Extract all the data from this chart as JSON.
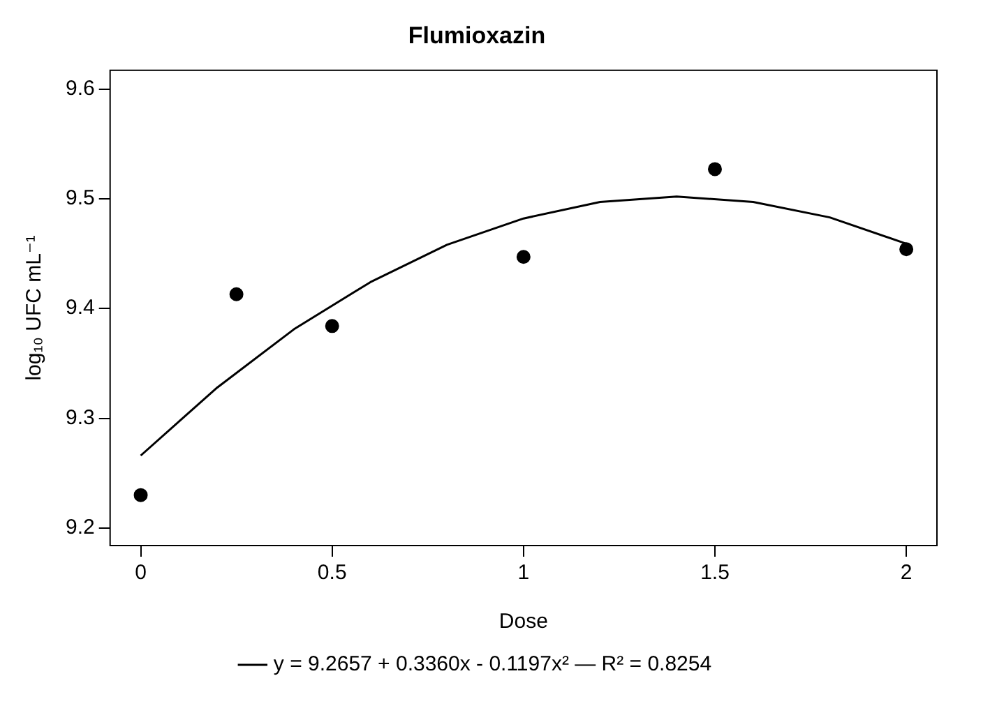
{
  "chart_data": {
    "type": "scatter",
    "title": "Flumioxazin",
    "xlabel": "Dose",
    "ylabel": "log₁₀ UFC mL⁻¹",
    "xlim": [
      -0.08,
      2.08
    ],
    "ylim": [
      9.184,
      9.617
    ],
    "xticks": [
      0,
      0.5,
      1,
      1.5,
      2
    ],
    "yticks": [
      9.2,
      9.3,
      9.4,
      9.5,
      9.6
    ],
    "legend": "bottom",
    "series": [
      {
        "color": "#000000",
        "marker": "circle",
        "x": [
          0,
          0.25,
          0.5,
          1,
          1.5,
          2
        ],
        "values": [
          9.23,
          9.413,
          9.384,
          9.447,
          9.527,
          9.454
        ]
      },
      {
        "type": "line",
        "name": "y = 9.2657 + 0.3360x - 0.1197x² — R² = 0.8254",
        "color": "#000000",
        "marker": "none",
        "line_style": "solid",
        "x": [
          0,
          0.2,
          0.4,
          0.6,
          0.8,
          1.0,
          1.2,
          1.4,
          1.6,
          1.8,
          2.0
        ],
        "values": [
          9.266,
          9.328,
          9.381,
          9.424,
          9.458,
          9.482,
          9.497,
          9.502,
          9.497,
          9.483,
          9.459
        ]
      }
    ]
  }
}
